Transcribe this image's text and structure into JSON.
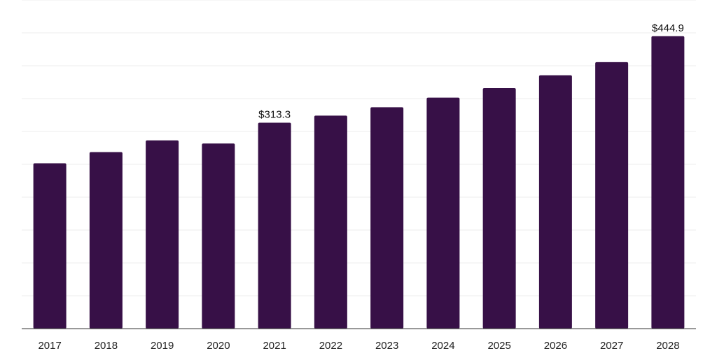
{
  "chart_data": {
    "type": "bar",
    "categories": [
      "2017",
      "2018",
      "2019",
      "2020",
      "2021",
      "2022",
      "2023",
      "2024",
      "2025",
      "2026",
      "2027",
      "2028"
    ],
    "values": [
      251.6,
      268.6,
      286.4,
      281.7,
      313.3,
      324.1,
      336.9,
      351.5,
      366.0,
      385.5,
      405.5,
      444.9
    ],
    "data_labels": [
      {
        "index": 4,
        "text": "$313.3"
      },
      {
        "index": 11,
        "text": "$444.9"
      }
    ],
    "title": "",
    "xlabel": "",
    "ylabel": "",
    "ylim": [
      0,
      500
    ],
    "grid": true,
    "legend": "none",
    "colors": {
      "bar": "#371047",
      "grid": "#eeeeee",
      "axis": "#333333"
    }
  }
}
